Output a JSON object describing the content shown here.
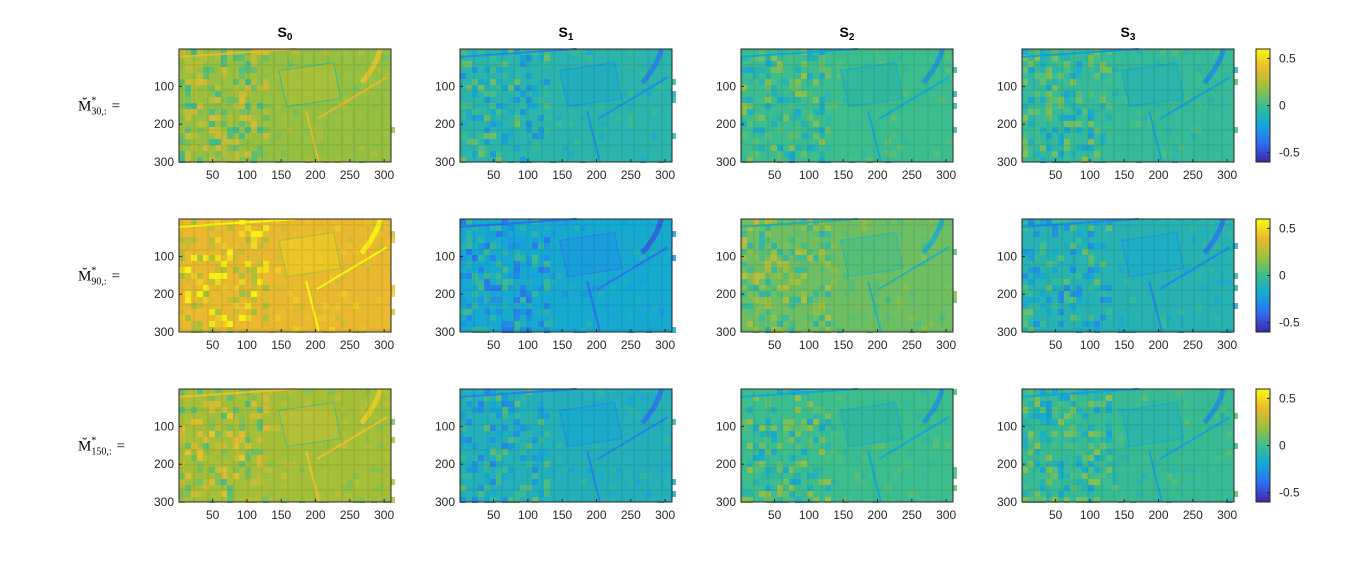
{
  "chart_data": {
    "type": "heatmap",
    "grid": "image-panels",
    "columns": [
      {
        "title": "S",
        "subscript": "0"
      },
      {
        "title": "S",
        "subscript": "1"
      },
      {
        "title": "S",
        "subscript": "2"
      },
      {
        "title": "S",
        "subscript": "3"
      }
    ],
    "rows": [
      {
        "label": "M̆",
        "sup": "*",
        "sub": "30,:",
        "eq": "="
      },
      {
        "label": "M̆",
        "sup": "*",
        "sub": "90,:",
        "eq": "="
      },
      {
        "label": "M̆",
        "sup": "*",
        "sub": "150,:",
        "eq": "="
      }
    ],
    "x_ticks": [
      "50",
      "100",
      "150",
      "200",
      "250",
      "300"
    ],
    "x_tick_values": [
      50,
      100,
      150,
      200,
      250,
      300
    ],
    "y_ticks": [
      "100",
      "200",
      "300"
    ],
    "y_tick_values": [
      100,
      200,
      300
    ],
    "xlim": [
      1,
      310
    ],
    "ylim": [
      1,
      300
    ],
    "colorbar": {
      "ticks": [
        "0.5",
        "0",
        "-0.5"
      ],
      "tick_values": [
        0.5,
        0,
        -0.5
      ],
      "range": [
        -0.6,
        0.6
      ],
      "colormap": "parula",
      "colors": [
        "#3e26a8",
        "#2f6df2",
        "#13a8d8",
        "#3cbd8e",
        "#9fc03a",
        "#eab930",
        "#f9fb0e"
      ]
    },
    "panel_mean_values": [
      [
        0.18,
        -0.08,
        0.0,
        -0.03
      ],
      [
        0.4,
        -0.18,
        0.1,
        -0.1
      ],
      [
        0.22,
        -0.12,
        0.0,
        -0.02
      ]
    ]
  }
}
